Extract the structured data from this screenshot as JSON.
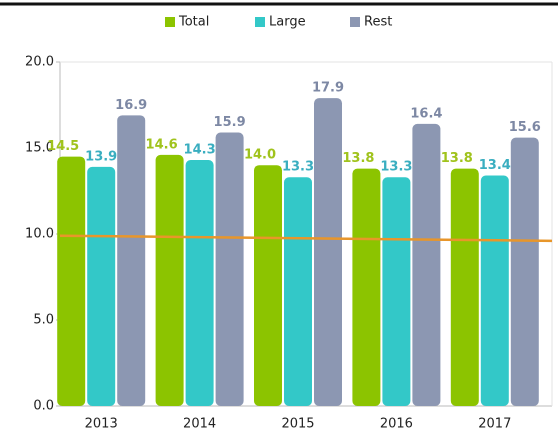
{
  "chart_data": {
    "type": "bar",
    "categories": [
      "2013",
      "2014",
      "2015",
      "2016",
      "2017"
    ],
    "series": [
      {
        "name": "Total",
        "color": "#8cc400",
        "label_color": "#a0c31c",
        "values": [
          14.5,
          14.6,
          14.0,
          13.8,
          13.8
        ],
        "value_labels": [
          "14.5",
          "14.6",
          "14.0",
          "13.8",
          "13.8"
        ]
      },
      {
        "name": "Large",
        "color": "#33c8c8",
        "label_color": "#3aaec0",
        "values": [
          13.9,
          14.3,
          13.3,
          13.3,
          13.4
        ],
        "value_labels": [
          "13.9",
          "14.3",
          "13.3",
          "13.3",
          "13.4"
        ]
      },
      {
        "name": "Rest",
        "color": "#8c97b2",
        "label_color": "#7d88a4",
        "values": [
          16.9,
          15.9,
          17.9,
          16.4,
          15.6
        ],
        "value_labels": [
          "16.9",
          "15.9",
          "17.9",
          "16.4",
          "15.6"
        ]
      }
    ],
    "line": {
      "color": "#e8962a",
      "values": [
        9.9,
        9.6
      ]
    },
    "ylim": [
      0,
      20
    ],
    "yticks": [
      {
        "value": 0,
        "label": "0.0"
      },
      {
        "value": 5,
        "label": "5.0"
      },
      {
        "value": 10,
        "label": "10.0"
      },
      {
        "value": 15,
        "label": "15.0"
      },
      {
        "value": 20,
        "label": "20.0"
      }
    ]
  }
}
